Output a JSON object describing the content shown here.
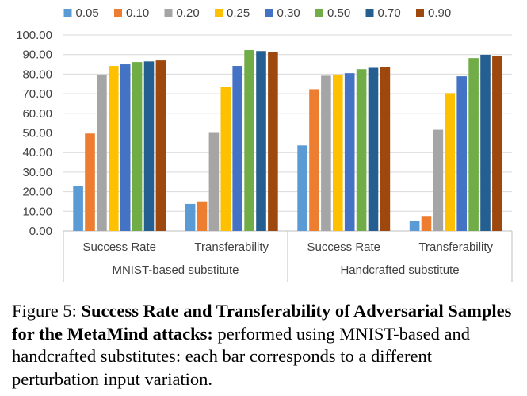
{
  "chart_data": {
    "type": "bar",
    "groups": [
      {
        "label": "MNIST-based substitute",
        "categories": [
          "Success Rate",
          "Transferability"
        ]
      },
      {
        "label": "Handcrafted substitute",
        "categories": [
          "Success Rate",
          "Transferability"
        ]
      }
    ],
    "categories": [
      "Success Rate",
      "Transferability",
      "Success Rate",
      "Transferability"
    ],
    "series": [
      {
        "name": "0.05",
        "color": "#5b9bd5",
        "values": [
          23.0,
          13.8,
          43.6,
          5.2
        ]
      },
      {
        "name": "0.10",
        "color": "#ed7d31",
        "values": [
          49.7,
          15.1,
          72.3,
          7.6
        ]
      },
      {
        "name": "0.20",
        "color": "#a5a5a5",
        "values": [
          79.8,
          50.4,
          79.2,
          51.6
        ]
      },
      {
        "name": "0.25",
        "color": "#ffc000",
        "values": [
          84.2,
          73.6,
          79.8,
          70.3
        ]
      },
      {
        "name": "0.30",
        "color": "#4472c4",
        "values": [
          85.0,
          84.2,
          80.5,
          78.9
        ]
      },
      {
        "name": "0.50",
        "color": "#70ad47",
        "values": [
          86.2,
          92.3,
          82.5,
          88.2
        ]
      },
      {
        "name": "0.70",
        "color": "#255e91",
        "values": [
          86.5,
          91.8,
          83.2,
          89.9
        ]
      },
      {
        "name": "0.90",
        "color": "#9e480e",
        "values": [
          87.0,
          91.4,
          83.6,
          89.3
        ]
      }
    ],
    "y_ticks": [
      "0.00",
      "10.00",
      "20.00",
      "30.00",
      "40.00",
      "50.00",
      "60.00",
      "70.00",
      "80.00",
      "90.00",
      "100.00"
    ],
    "ylim": [
      0,
      100
    ],
    "grid": true,
    "legend_position": "top"
  },
  "caption": {
    "label": "Figure 5:",
    "bold": "Success Rate and Transferability of Adversarial Samples for the MetaMind attacks:",
    "rest": "performed using MNIST-based and handcrafted substitutes: each bar corresponds to a different perturbation input variation."
  }
}
